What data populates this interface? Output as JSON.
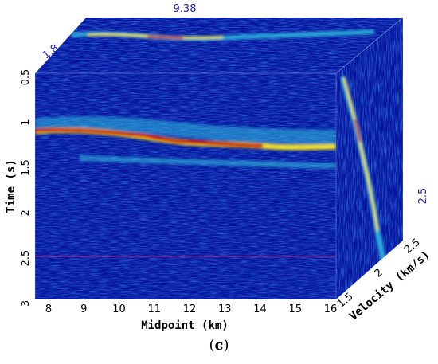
{
  "figure": {
    "caption_open": "(",
    "caption_letter": "c",
    "caption_close": ")"
  },
  "axes": {
    "time": {
      "title": "Time (s)",
      "ticks": [
        "0.5",
        "1",
        "1.5",
        "2",
        "2.5",
        "3"
      ]
    },
    "midpoint": {
      "title": "Midpoint (km)",
      "ticks": [
        "8",
        "9",
        "10",
        "11",
        "12",
        "13",
        "14",
        "15",
        "16"
      ]
    },
    "velocity": {
      "title": "Velocity (km/s)",
      "ticks": [
        "1.5",
        "2",
        "2.5"
      ]
    }
  },
  "slice_labels": {
    "top_midpoint": "9.38",
    "top_velocity": "1.8",
    "side_time": "2.5"
  },
  "colors": {
    "background": "#08159e",
    "hot": "#d01010",
    "warm": "#f0e020",
    "cool": "#30c0e0",
    "label_blue": "#1e22c8"
  }
}
